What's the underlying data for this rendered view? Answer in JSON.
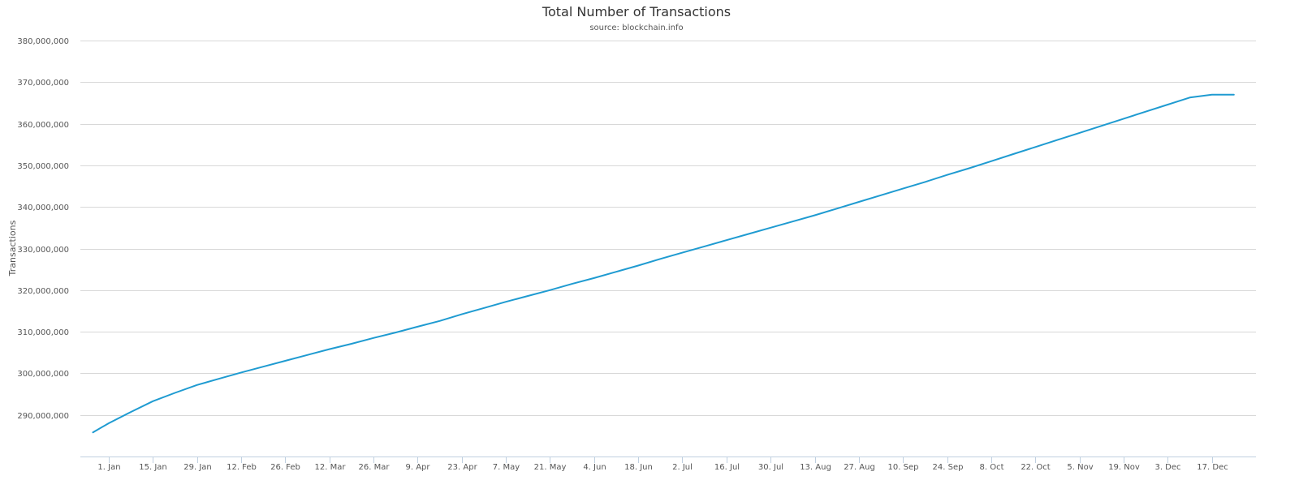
{
  "chart_data": {
    "type": "line",
    "title": "Total Number of Transactions",
    "subtitle": "source: blockchain.info",
    "xlabel": "",
    "ylabel": "Transactions",
    "ylim": [
      280000000,
      380000000
    ],
    "yticks": [
      290000000,
      300000000,
      310000000,
      320000000,
      330000000,
      340000000,
      350000000,
      360000000,
      370000000,
      380000000
    ],
    "ytick_labels": [
      "290,000,000",
      "300,000,000",
      "310,000,000",
      "320,000,000",
      "330,000,000",
      "340,000,000",
      "350,000,000",
      "360,000,000",
      "370,000,000",
      "380,000,000"
    ],
    "xlim": [
      "2018-12-23",
      "2019-12-31"
    ],
    "xticks": [
      "2019-01-01",
      "2019-01-15",
      "2019-01-29",
      "2019-02-12",
      "2019-02-26",
      "2019-03-12",
      "2019-03-26",
      "2019-04-09",
      "2019-04-23",
      "2019-05-07",
      "2019-05-21",
      "2019-06-04",
      "2019-06-18",
      "2019-07-02",
      "2019-07-16",
      "2019-07-30",
      "2019-08-13",
      "2019-08-27",
      "2019-09-10",
      "2019-09-24",
      "2019-10-08",
      "2019-10-22",
      "2019-11-05",
      "2019-11-19",
      "2019-12-03",
      "2019-12-17"
    ],
    "xtick_labels": [
      "1. Jan",
      "15. Jan",
      "29. Jan",
      "12. Feb",
      "26. Feb",
      "12. Mar",
      "26. Mar",
      "9. Apr",
      "23. Apr",
      "7. May",
      "21. May",
      "4. Jun",
      "18. Jun",
      "2. Jul",
      "16. Jul",
      "30. Jul",
      "13. Aug",
      "27. Aug",
      "10. Sep",
      "24. Sep",
      "8. Oct",
      "22. Oct",
      "5. Nov",
      "19. Nov",
      "3. Dec",
      "17. Dec"
    ],
    "grid": true,
    "legend": "none",
    "series": [
      {
        "color": "#1f9bd1",
        "x": [
          "2018-12-27",
          "2019-01-01",
          "2019-01-08",
          "2019-01-15",
          "2019-01-22",
          "2019-01-29",
          "2019-02-05",
          "2019-02-12",
          "2019-02-19",
          "2019-02-26",
          "2019-03-05",
          "2019-03-12",
          "2019-03-19",
          "2019-03-26",
          "2019-04-02",
          "2019-04-09",
          "2019-04-16",
          "2019-04-23",
          "2019-04-30",
          "2019-05-07",
          "2019-05-14",
          "2019-05-21",
          "2019-05-28",
          "2019-06-04",
          "2019-06-11",
          "2019-06-18",
          "2019-06-25",
          "2019-07-02",
          "2019-07-09",
          "2019-07-16",
          "2019-07-23",
          "2019-07-30",
          "2019-08-06",
          "2019-08-13",
          "2019-08-20",
          "2019-08-27",
          "2019-09-03",
          "2019-09-10",
          "2019-09-17",
          "2019-09-24",
          "2019-10-01",
          "2019-10-08",
          "2019-10-15",
          "2019-10-22",
          "2019-10-29",
          "2019-11-05",
          "2019-11-12",
          "2019-11-19",
          "2019-11-26",
          "2019-12-03",
          "2019-12-10",
          "2019-12-17",
          "2019-12-24"
        ],
        "values": [
          285800000,
          288000000,
          290700000,
          293300000,
          295300000,
          297200000,
          298700000,
          300200000,
          301600000,
          303000000,
          304400000,
          305800000,
          307100000,
          308500000,
          309800000,
          311200000,
          312600000,
          314200000,
          315700000,
          317200000,
          318600000,
          320000000,
          321500000,
          322900000,
          324400000,
          325900000,
          327500000,
          329000000,
          330500000,
          332000000,
          333500000,
          335000000,
          336500000,
          338000000,
          339600000,
          341200000,
          342800000,
          344400000,
          346000000,
          347700000,
          349300000,
          351000000,
          352700000,
          354400000,
          356100000,
          357800000,
          359500000,
          361200000,
          362900000,
          364600000,
          366300000,
          367000000,
          367000000
        ]
      }
    ]
  }
}
